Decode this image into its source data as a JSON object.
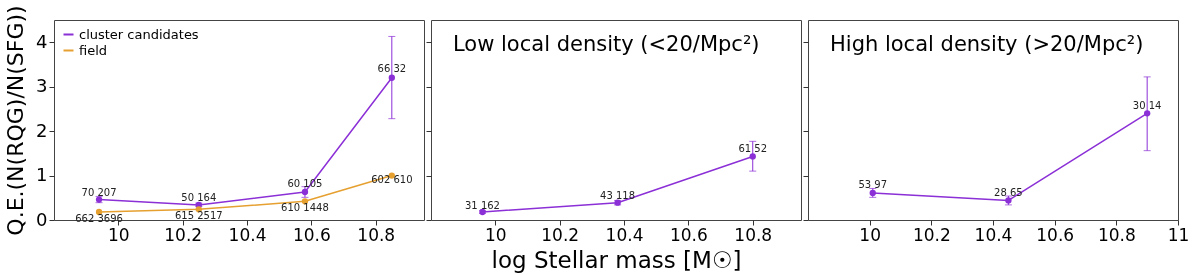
{
  "chart_data": [
    {
      "type": "line",
      "ylabel": "Q.E.(N(RQG)/N(SFG))",
      "xlim": [
        9.8,
        10.95
      ],
      "xticks": [
        10,
        10.2,
        10.4,
        10.6,
        10.8
      ],
      "ylim": [
        0,
        4.5
      ],
      "yticks": [
        0,
        1,
        2,
        3,
        4
      ],
      "marker": "circle",
      "legend": "top left",
      "series": [
        {
          "name": "cluster candidates",
          "color": "#8b2fd6",
          "x": [
            9.94,
            10.25,
            10.58,
            10.85
          ],
          "values": [
            0.46,
            0.34,
            0.63,
            3.2
          ],
          "errors": [
            0.07,
            0.04,
            0.12,
            [
              2.28,
              4.13
            ]
          ]
        },
        {
          "name": "field",
          "color": "#e6a030",
          "x": [
            9.94,
            10.25,
            10.58,
            10.85
          ],
          "values": [
            0.18,
            0.24,
            0.42,
            1.0
          ]
        }
      ],
      "annotations": [
        {
          "text": "70 207",
          "x": 9.94,
          "y": 0.6
        },
        {
          "text": "50 164",
          "x": 10.25,
          "y": 0.5
        },
        {
          "text": "60 105",
          "x": 10.58,
          "y": 0.8
        },
        {
          "text": "66 32",
          "x": 10.85,
          "y": 3.4
        },
        {
          "text": "662 3696",
          "x": 9.94,
          "y": 0.03
        },
        {
          "text": "615 2517",
          "x": 10.25,
          "y": 0.09
        },
        {
          "text": "610 1448",
          "x": 10.58,
          "y": 0.27
        },
        {
          "text": "602 610",
          "x": 10.85,
          "y": 0.9
        }
      ]
    },
    {
      "type": "line",
      "xlabel": "log Stellar mass [M☉]",
      "xlim": [
        9.8,
        10.95
      ],
      "xticks": [
        10,
        10.2,
        10.4,
        10.6,
        10.8
      ],
      "ylim": [
        0,
        4.5
      ],
      "yticks": [
        0,
        1,
        2,
        3,
        4
      ],
      "tick_labels": "x",
      "marker": "circle",
      "series": [
        {
          "color": "#8b2fd6",
          "x": [
            9.96,
            10.38,
            10.8
          ],
          "values": [
            0.18,
            0.39,
            1.43
          ],
          "errors": [
            0.03,
            0.05,
            [
              1.1,
              1.77
            ]
          ]
        }
      ],
      "annotations": [
        "Low local density (<20/Mpc²)",
        {
          "text": "31 162",
          "x": 9.96,
          "y": 0.32
        },
        {
          "text": "43 118",
          "x": 10.38,
          "y": 0.53
        },
        {
          "text": "61 52",
          "x": 10.8,
          "y": 1.6
        }
      ]
    },
    {
      "type": "line",
      "xlim": [
        9.8,
        11
      ],
      "xticks": [
        10,
        10.2,
        10.4,
        10.6,
        10.8,
        11
      ],
      "ylim": [
        0,
        4.5
      ],
      "yticks": [
        0,
        1,
        2,
        3,
        4
      ],
      "tick_labels": "x",
      "marker": "circle",
      "series": [
        {
          "color": "#8b2fd6",
          "x": [
            10.01,
            10.45,
            10.9
          ],
          "values": [
            0.61,
            0.44,
            2.4
          ],
          "errors": [
            0.1,
            0.1,
            [
              1.56,
              3.22
            ]
          ]
        }
      ],
      "annotations": [
        "High local density (>20/Mpc²)",
        {
          "text": "53 97",
          "x": 10.01,
          "y": 0.78
        },
        {
          "text": "28 65",
          "x": 10.45,
          "y": 0.6
        },
        {
          "text": "30 14",
          "x": 10.9,
          "y": 2.57
        }
      ]
    }
  ]
}
